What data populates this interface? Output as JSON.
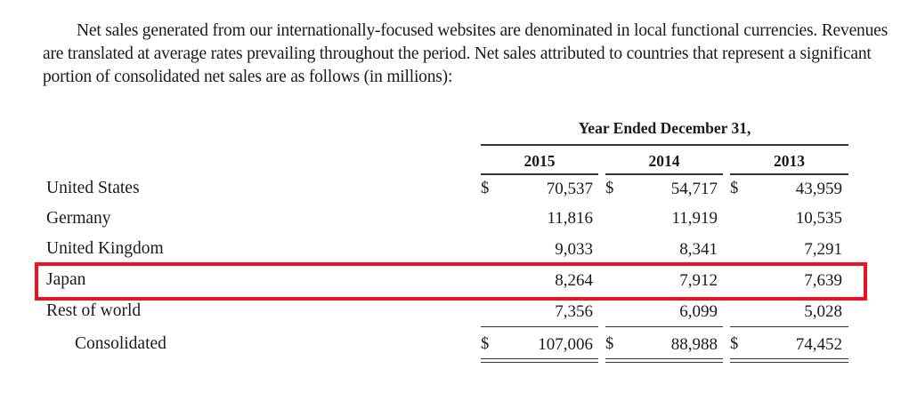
{
  "intro": {
    "lines": [
      "Net sales generated from our internationally-focused websites are denominated in local functional currencies. Revenues",
      "are translated at average rates prevailing throughout the period. Net sales attributed to countries that represent a significant",
      "portion of consolidated net sales are as follows (in millions):"
    ]
  },
  "table": {
    "period_header": "Year Ended December 31,",
    "years": [
      "2015",
      "2014",
      "2013"
    ],
    "currency_symbol": "$",
    "rows": [
      {
        "label": "United States",
        "values": [
          "70,537",
          "54,717",
          "43,959"
        ]
      },
      {
        "label": "Germany",
        "values": [
          "11,816",
          "11,919",
          "10,535"
        ]
      },
      {
        "label": "United Kingdom",
        "values": [
          "9,033",
          "8,341",
          "7,291"
        ]
      },
      {
        "label": "Japan",
        "values": [
          "8,264",
          "7,912",
          "7,639"
        ]
      },
      {
        "label": "Rest of world",
        "values": [
          "7,356",
          "6,099",
          "5,028"
        ]
      },
      {
        "label": "Consolidated",
        "values": [
          "107,006",
          "88,988",
          "74,452"
        ]
      }
    ]
  },
  "highlight": {
    "row": "Japan",
    "color": "#e8141f"
  }
}
